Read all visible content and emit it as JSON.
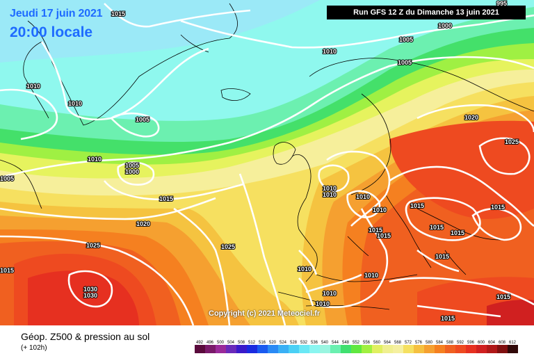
{
  "header": {
    "date": "Jeudi 17 juin 2021",
    "time": "20:00 locale",
    "run": "Run GFS 12 Z du Dimanche 13 juin 2021"
  },
  "copyright": "Copyright (c) 2021 Meteociel.fr",
  "legend": {
    "title": "Géop. Z500 & pression au sol",
    "subtitle": "(+ 102h)",
    "ticks": [
      "492",
      "496",
      "500",
      "504",
      "508",
      "512",
      "516",
      "520",
      "524",
      "528",
      "532",
      "536",
      "540",
      "544",
      "548",
      "552",
      "556",
      "560",
      "564",
      "568",
      "572",
      "576",
      "580",
      "584",
      "588",
      "592",
      "596",
      "600",
      "604",
      "608",
      "612"
    ],
    "colors": [
      "#5a0a3c",
      "#7a1a6a",
      "#9a2a9a",
      "#6a2aba",
      "#3a1aca",
      "#1a2ae0",
      "#1a5af0",
      "#2a8af5",
      "#3ab0f5",
      "#4ad0f5",
      "#6ae8f5",
      "#8af5f0",
      "#9af5e0",
      "#6af0b0",
      "#40e070",
      "#60e840",
      "#a0f040",
      "#e0f060",
      "#f0f090",
      "#f5f0a0",
      "#f5e060",
      "#f5c040",
      "#f5a030",
      "#f58020",
      "#f06020",
      "#ee4a20",
      "#e63020",
      "#d02020",
      "#b01818",
      "#801010",
      "#300808"
    ]
  },
  "pressure_labels": [
    {
      "id": "995",
      "text": "995"
    },
    {
      "id": "1000a",
      "text": "1000"
    },
    {
      "id": "1005a",
      "text": "1005"
    },
    {
      "id": "1005b",
      "text": "1005"
    },
    {
      "id": "1010a",
      "text": "1010"
    },
    {
      "id": "1015a",
      "text": "1015"
    },
    {
      "id": "1010b",
      "text": "1010"
    },
    {
      "id": "1010c",
      "text": "1010"
    },
    {
      "id": "1005c",
      "text": "1005"
    },
    {
      "id": "1020a",
      "text": "1020"
    },
    {
      "id": "1025a",
      "text": "1025"
    },
    {
      "id": "1010d",
      "text": "1010"
    },
    {
      "id": "1005d",
      "text": "1005"
    },
    {
      "id": "1000b",
      "text": "1000"
    },
    {
      "id": "1005e",
      "text": "1005"
    },
    {
      "id": "1015b",
      "text": "1015"
    },
    {
      "id": "1020b",
      "text": "1020"
    },
    {
      "id": "1025b",
      "text": "1025"
    },
    {
      "id": "1025c",
      "text": "1025"
    },
    {
      "id": "1030a",
      "text": "1030"
    },
    {
      "id": "1030b",
      "text": "1030"
    },
    {
      "id": "1015c",
      "text": "1015"
    },
    {
      "id": "1010e",
      "text": "1010"
    },
    {
      "id": "1010f",
      "text": "1010"
    },
    {
      "id": "1010g",
      "text": "1010"
    },
    {
      "id": "1010h",
      "text": "1010"
    },
    {
      "id": "1015d",
      "text": "1015"
    },
    {
      "id": "1015e",
      "text": "1015"
    },
    {
      "id": "1015f",
      "text": "1015"
    },
    {
      "id": "1015g",
      "text": "1015"
    },
    {
      "id": "1015h",
      "text": "1015"
    },
    {
      "id": "1015i",
      "text": "1015"
    },
    {
      "id": "1010i",
      "text": "1010"
    },
    {
      "id": "1010j",
      "text": "1010"
    },
    {
      "id": "1010k",
      "text": "1010"
    },
    {
      "id": "1010l",
      "text": "1010"
    },
    {
      "id": "1015j",
      "text": "1015"
    },
    {
      "id": "1015k",
      "text": "1015"
    },
    {
      "id": "1015l",
      "text": "1015"
    }
  ]
}
